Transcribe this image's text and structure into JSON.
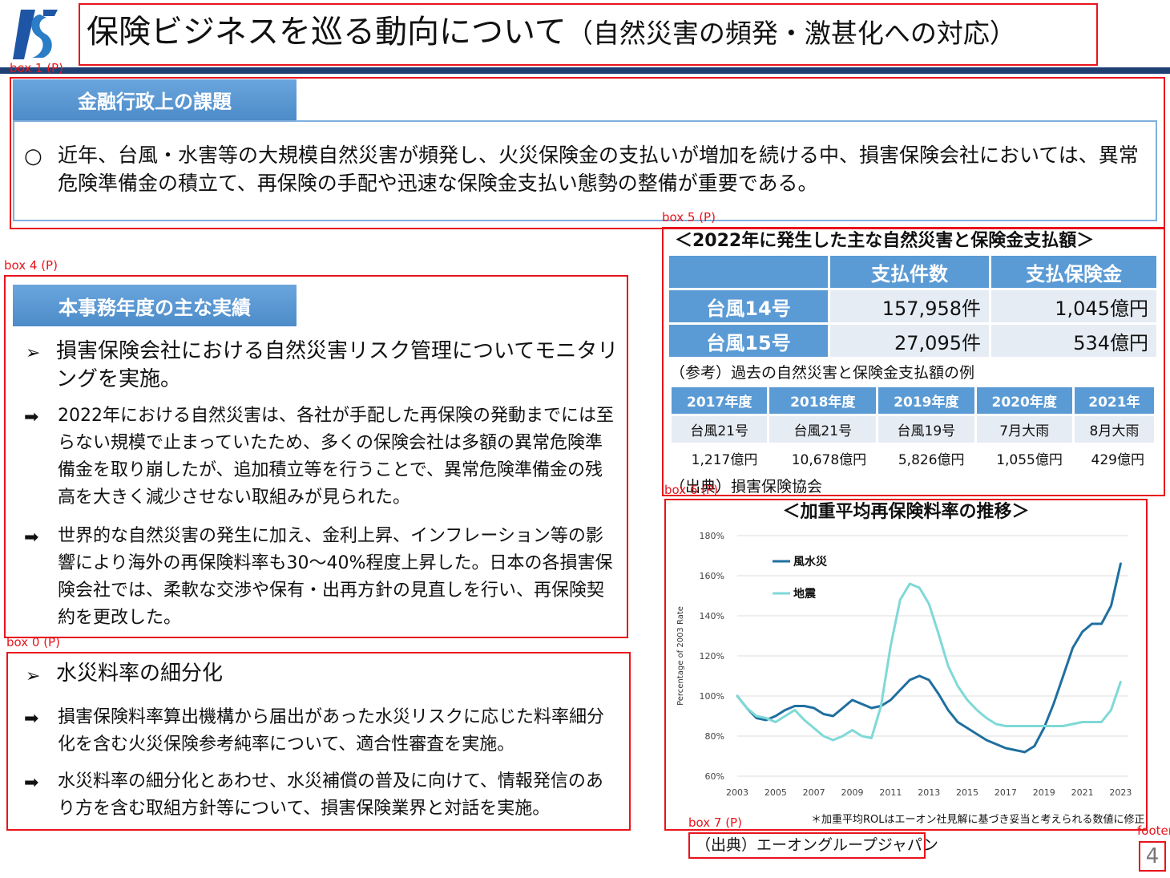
{
  "header": {
    "title": "保険ビジネスを巡る動向について",
    "subtitle": "（自然災害の頻発・激甚化への対応）"
  },
  "issue": {
    "heading": "金融行政上の課題",
    "bullet": "○",
    "text": "近年、台風・水害等の大規模自然災害が頻発し、火災保険金の支払いが増加を続ける中、損害保険会社においては、異常危険準備金の積立て、再保険の手配や迅速な保険金支払い態勢の整備が重要である。"
  },
  "results": {
    "heading": "本事務年度の主な実績",
    "item1": "損害保険会社における自然災害リスク管理についてモニタリングを実施。",
    "sub1": "2022年における自然災害は、各社が手配した再保険の発動までには至らない規模で止まっていたため、多くの保険会社は多額の異常危険準備金を取り崩したが、追加積立等を行うことで、異常危険準備金の残高を大きく減少させない取組みが見られた。",
    "sub2": "世界的な自然災害の発生に加え、金利上昇、インフレーション等の影響により海外の再保険料率も30～40%程度上昇した。日本の各損害保険会社では、柔軟な交渉や保有・出再方針の見直しを行い、再保険契約を更改した。",
    "item2": "水災料率の細分化",
    "sub3": "損害保険料率算出機構から届出があった水災リスクに応じた料率細分化を含む火災保険参考純率について、適合性審査を実施。",
    "sub4": "水災料率の細分化とあわせ、水災補償の普及に向けて、情報発信のあり方を含む取組方針等について、損害保険業界と対話を実施。",
    "bullet_marker": "➢",
    "arrow_marker": "➡"
  },
  "table2022": {
    "title": "＜2022年に発生した主な自然災害と保険金支払額＞",
    "columns": [
      "支払件数",
      "支払保険金"
    ],
    "rows": [
      {
        "name": "台風14号",
        "count": "157,958件",
        "amount": "1,045億円"
      },
      {
        "name": "台風15号",
        "count": "27,095件",
        "amount": "534億円"
      }
    ],
    "ref_label": "（参考）過去の自然災害と保険金支払額の例",
    "past": {
      "years": [
        "2017年度",
        "2018年度",
        "2019年度",
        "2020年度",
        "2021年"
      ],
      "events": [
        "台風21号",
        "台風21号",
        "台風19号",
        "7月大雨",
        "8月大雨"
      ],
      "amounts": [
        "1,217億円",
        "10,678億円",
        "5,826億円",
        "1,055億円",
        "429億円"
      ]
    },
    "source": "（出典）損害保険協会"
  },
  "chart_title": "＜加重平均再保険料率の推移＞",
  "chart_note": "＊加重平均ROLはエーオン社見解に基づき妥当と考えられる数値に修正",
  "chart_source": "（出典）エーオングループジャパン",
  "annotations": {
    "box0": "box 0 (P)",
    "box1": "box 1 (P)",
    "box4": "box 4 (P)",
    "box5": "box 5 (P)",
    "box6": "box 6 (P)",
    "box7": "box 7 (P)",
    "footer": "footer"
  },
  "page_number": "4",
  "colors": {
    "series1": "#1f6f9f",
    "series2": "#7fd9d6",
    "heading_blue": "#5b9bd5",
    "red_box": "#e8141b",
    "rule": "#1f3f73"
  },
  "chart_data": {
    "type": "line",
    "title": "＜加重平均再保険料率の推移＞",
    "ylabel": "Percentage of 2003 Rate",
    "ylim": [
      60,
      180
    ],
    "yticks": [
      "60%",
      "80%",
      "100%",
      "120%",
      "140%",
      "160%",
      "180%"
    ],
    "xlim": [
      2003,
      2023.4
    ],
    "xticks": [
      "2003",
      "2005",
      "2007",
      "2009",
      "2011",
      "2013",
      "2015",
      "2017",
      "2019",
      "2021",
      "2023"
    ],
    "legend_position": "top-left",
    "grid": "horizontal",
    "series": [
      {
        "name": "風水災",
        "x": [
          2003,
          2003.5,
          2004,
          2004.5,
          2005,
          2005.5,
          2006,
          2006.5,
          2007,
          2007.5,
          2008,
          2008.5,
          2009,
          2009.5,
          2010,
          2010.5,
          2011,
          2011.5,
          2012,
          2012.5,
          2013,
          2013.5,
          2014,
          2014.5,
          2015,
          2015.5,
          2016,
          2016.5,
          2017,
          2017.5,
          2018,
          2018.5,
          2019,
          2019.5,
          2020,
          2020.5,
          2021,
          2021.5,
          2022,
          2022.5,
          2023
        ],
        "y": [
          100,
          94,
          89,
          88,
          90,
          93,
          95,
          95,
          94,
          91,
          90,
          94,
          98,
          96,
          94,
          95,
          98,
          103,
          108,
          110,
          108,
          101,
          93,
          87,
          84,
          81,
          78,
          76,
          74,
          73,
          72,
          75,
          84,
          96,
          110,
          124,
          132,
          136,
          136,
          145,
          166
        ]
      },
      {
        "name": "地震",
        "x": [
          2003,
          2003.5,
          2004,
          2004.5,
          2005,
          2005.5,
          2006,
          2006.5,
          2007,
          2007.5,
          2008,
          2008.5,
          2009,
          2009.5,
          2010,
          2010.5,
          2011,
          2011.5,
          2012,
          2012.5,
          2013,
          2013.5,
          2014,
          2014.5,
          2015,
          2015.5,
          2016,
          2016.5,
          2017,
          2017.5,
          2018,
          2018.5,
          2019,
          2019.5,
          2020,
          2020.5,
          2021,
          2021.5,
          2022,
          2022.5,
          2023
        ],
        "y": [
          100,
          94,
          90,
          89,
          87,
          90,
          93,
          88,
          84,
          80,
          78,
          80,
          83,
          80,
          79,
          95,
          125,
          148,
          156,
          154,
          146,
          131,
          115,
          105,
          98,
          93,
          89,
          86,
          85,
          85,
          85,
          85,
          85,
          85,
          85,
          86,
          87,
          87,
          87,
          93,
          107
        ]
      }
    ]
  }
}
